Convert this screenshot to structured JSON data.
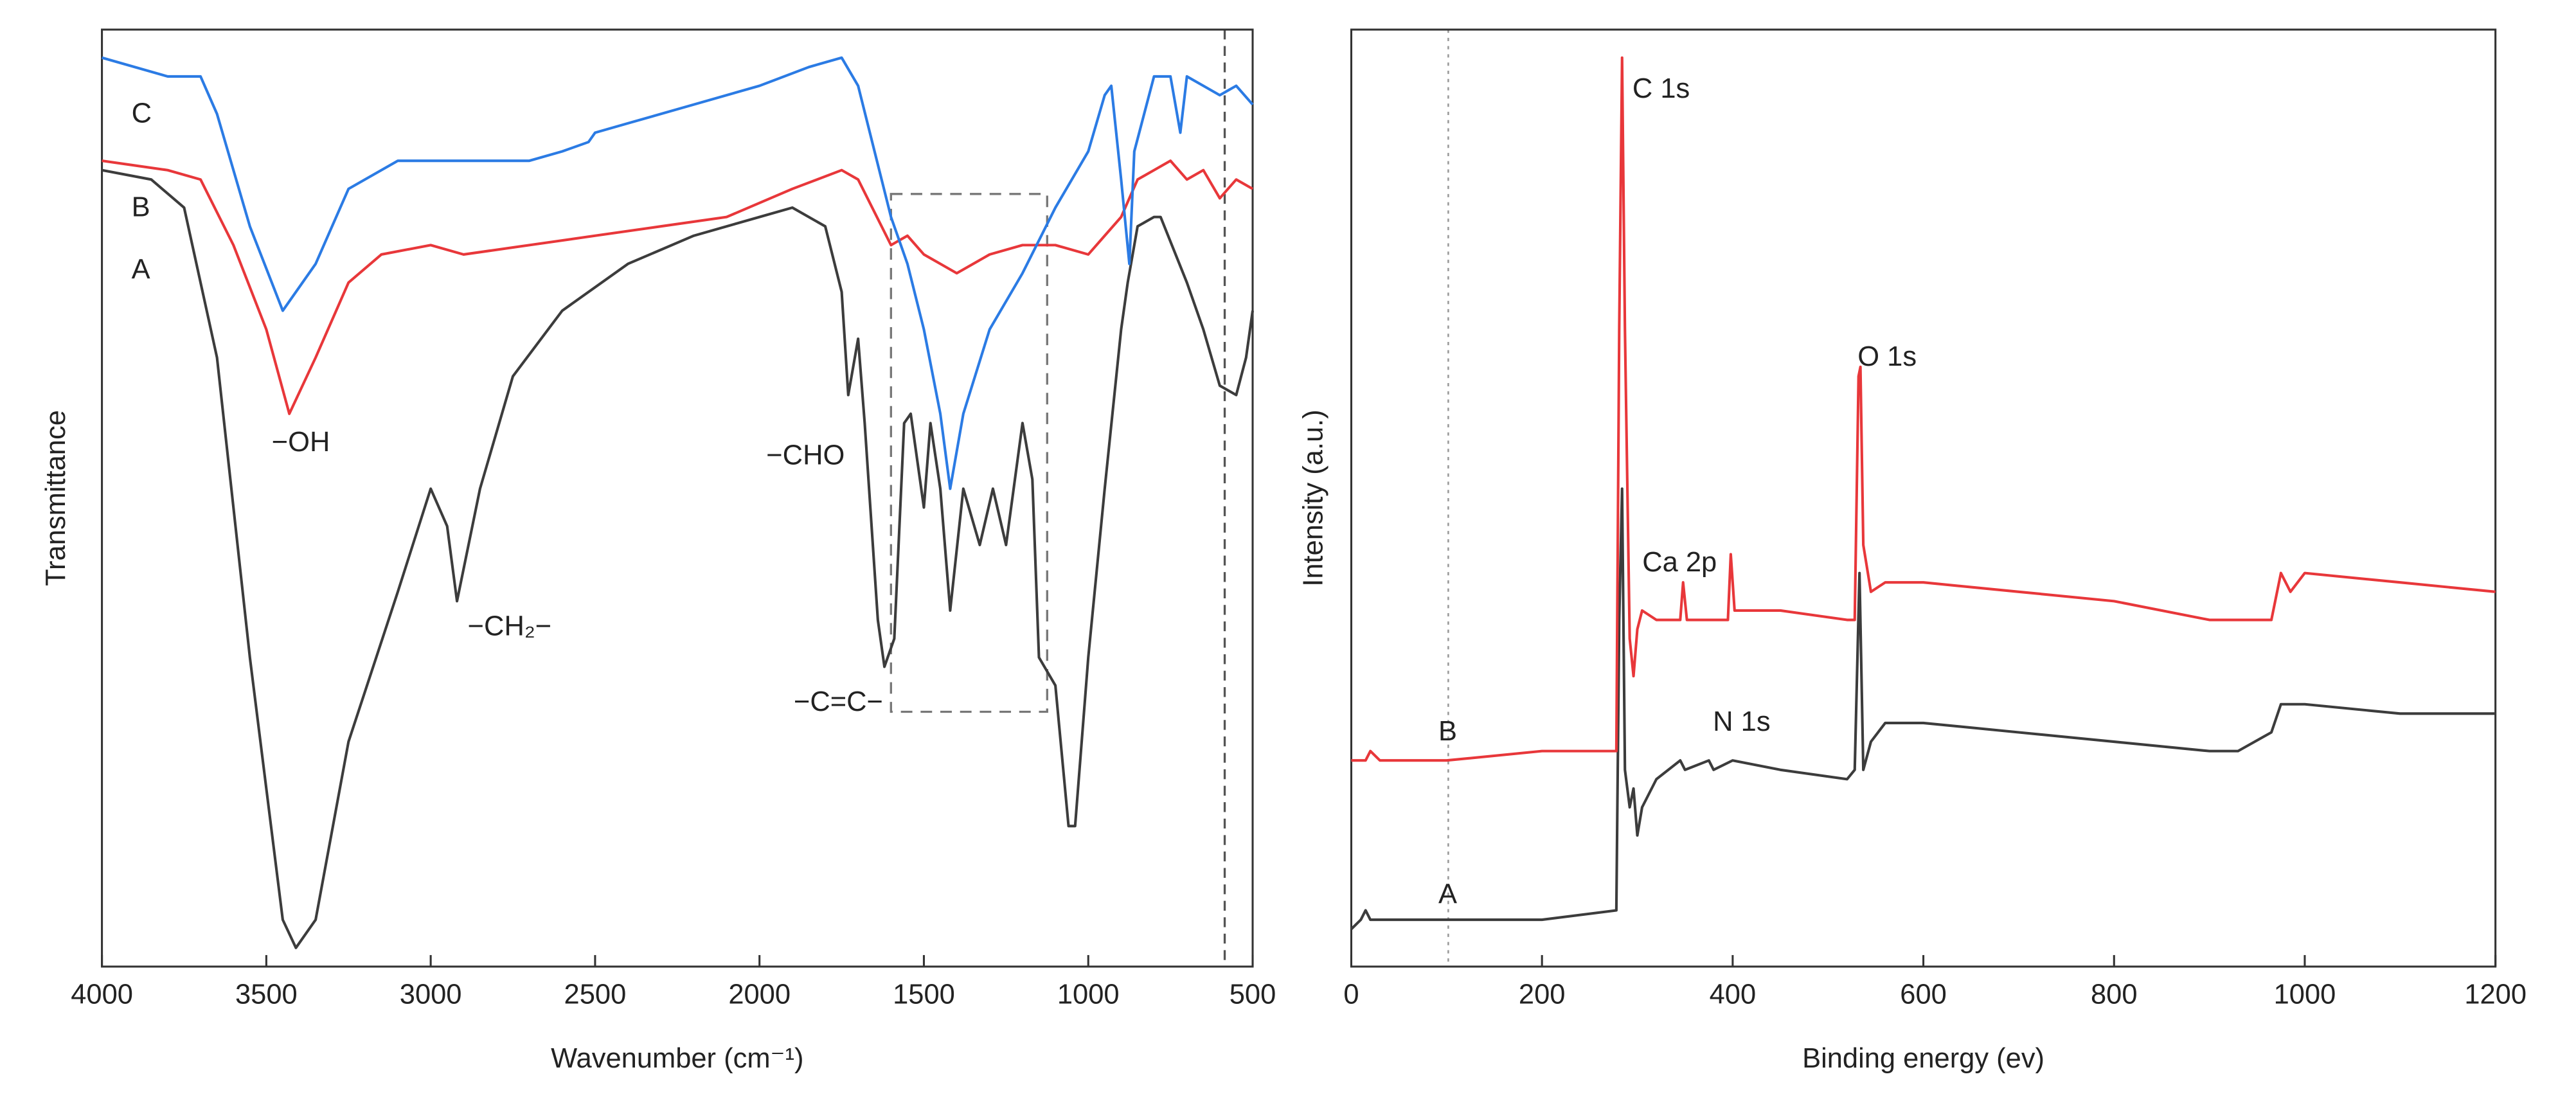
{
  "chart_data": [
    {
      "type": "line",
      "xlabel": "Wavenumber (cm⁻¹)",
      "ylabel": "Transmittance",
      "xlim": [
        4000,
        500
      ],
      "ylim": [
        0,
        100
      ],
      "xticks": [
        4000,
        3500,
        3000,
        2500,
        2000,
        1500,
        1000,
        500
      ],
      "annotations": [
        "−OH",
        "−CH₂−",
        "−CHO",
        "−C=C−"
      ],
      "series": [
        {
          "name": "A",
          "color": "#3c3c3c",
          "x": [
            4000,
            3850,
            3750,
            3650,
            3550,
            3450,
            3410,
            3350,
            3250,
            3100,
            3000,
            2950,
            2920,
            2850,
            2750,
            2600,
            2400,
            2200,
            2000,
            1900,
            1800,
            1750,
            1730,
            1700,
            1680,
            1640,
            1620,
            1590,
            1560,
            1540,
            1500,
            1480,
            1450,
            1420,
            1380,
            1330,
            1290,
            1250,
            1200,
            1170,
            1150,
            1100,
            1060,
            1040,
            1000,
            950,
            900,
            880,
            850,
            800,
            780,
            700,
            650,
            600,
            550,
            520,
            500
          ],
          "values": [
            85,
            84,
            81,
            65,
            33,
            5,
            2,
            5,
            24,
            40,
            51,
            47,
            39,
            51,
            63,
            70,
            75,
            78,
            80,
            81,
            79,
            72,
            61,
            67,
            58,
            37,
            32,
            35,
            58,
            59,
            49,
            58,
            51,
            38,
            51,
            45,
            51,
            45,
            58,
            52,
            33,
            30,
            15,
            15,
            33,
            51,
            68,
            73,
            79,
            80,
            80,
            73,
            68,
            62,
            61,
            65,
            70
          ]
        },
        {
          "name": "B",
          "color": "#e8373a",
          "x": [
            4000,
            3800,
            3700,
            3600,
            3500,
            3430,
            3350,
            3250,
            3150,
            3000,
            2900,
            2700,
            2500,
            2300,
            2100,
            1900,
            1750,
            1700,
            1600,
            1550,
            1500,
            1450,
            1400,
            1300,
            1200,
            1100,
            1000,
            950,
            900,
            850,
            800,
            750,
            700,
            650,
            600,
            550,
            500
          ],
          "values": [
            86,
            85,
            84,
            77,
            68,
            59,
            65,
            73,
            76,
            77,
            76,
            77,
            78,
            79,
            80,
            83,
            85,
            84,
            77,
            78,
            76,
            75,
            74,
            76,
            77,
            77,
            76,
            78,
            80,
            84,
            85,
            86,
            84,
            85,
            82,
            84,
            83
          ]
        },
        {
          "name": "C",
          "color": "#2b7be4",
          "x": [
            4000,
            3800,
            3700,
            3650,
            3550,
            3450,
            3350,
            3250,
            3100,
            2900,
            2700,
            2600,
            2520,
            2500,
            2400,
            2200,
            2000,
            1850,
            1750,
            1700,
            1650,
            1600,
            1550,
            1500,
            1450,
            1420,
            1380,
            1300,
            1200,
            1100,
            1000,
            950,
            930,
            900,
            875,
            860,
            800,
            750,
            720,
            700,
            650,
            600,
            550,
            500
          ],
          "values": [
            97,
            95,
            95,
            91,
            79,
            70,
            75,
            83,
            86,
            86,
            86,
            87,
            88,
            89,
            90,
            92,
            94,
            96,
            97,
            94,
            87,
            80,
            75,
            68,
            59,
            51,
            59,
            68,
            74,
            81,
            87,
            93,
            94,
            84,
            75,
            87,
            95,
            95,
            89,
            95,
            94,
            93,
            94,
            92
          ]
        }
      ]
    },
    {
      "type": "line",
      "xlabel": "Binding energy (ev)",
      "ylabel": "Intensity (a.u.)",
      "xlim": [
        0,
        1200
      ],
      "ylim": [
        0,
        100
      ],
      "xticks": [
        0,
        200,
        400,
        600,
        800,
        1000,
        1200
      ],
      "annotations": [
        "C 1s",
        "O 1s",
        "Ca 2p",
        "N 1s"
      ],
      "series": [
        {
          "name": "A",
          "color": "#3c3c3c",
          "x": [
            0,
            10,
            15,
            20,
            100,
            200,
            278,
            281,
            284,
            287,
            292,
            296,
            300,
            305,
            320,
            345,
            350,
            375,
            380,
            400,
            450,
            520,
            528,
            533,
            537,
            545,
            560,
            600,
            700,
            800,
            900,
            930,
            965,
            975,
            1000,
            1100,
            1200
          ],
          "values": [
            4,
            5,
            6,
            5,
            5,
            5,
            6,
            37,
            51,
            21,
            17,
            19,
            14,
            17,
            20,
            22,
            21,
            22,
            21,
            22,
            21,
            20,
            21,
            42,
            21,
            24,
            26,
            26,
            25,
            24,
            23,
            23,
            25,
            28,
            28,
            27,
            27
          ]
        },
        {
          "name": "B",
          "color": "#e8373a",
          "x": [
            0,
            15,
            20,
            30,
            100,
            200,
            278,
            281,
            284,
            287,
            292,
            296,
            300,
            305,
            320,
            345,
            348,
            352,
            395,
            398,
            402,
            450,
            520,
            528,
            532,
            534,
            537,
            545,
            560,
            600,
            700,
            800,
            900,
            965,
            975,
            985,
            1000,
            1100,
            1200
          ],
          "values": [
            22,
            22,
            23,
            22,
            22,
            23,
            23,
            68,
            97,
            68,
            35,
            31,
            36,
            38,
            37,
            37,
            41,
            37,
            37,
            44,
            38,
            38,
            37,
            37,
            63,
            64,
            45,
            40,
            41,
            41,
            40,
            39,
            37,
            37,
            42,
            40,
            42,
            41,
            40
          ]
        }
      ]
    }
  ]
}
